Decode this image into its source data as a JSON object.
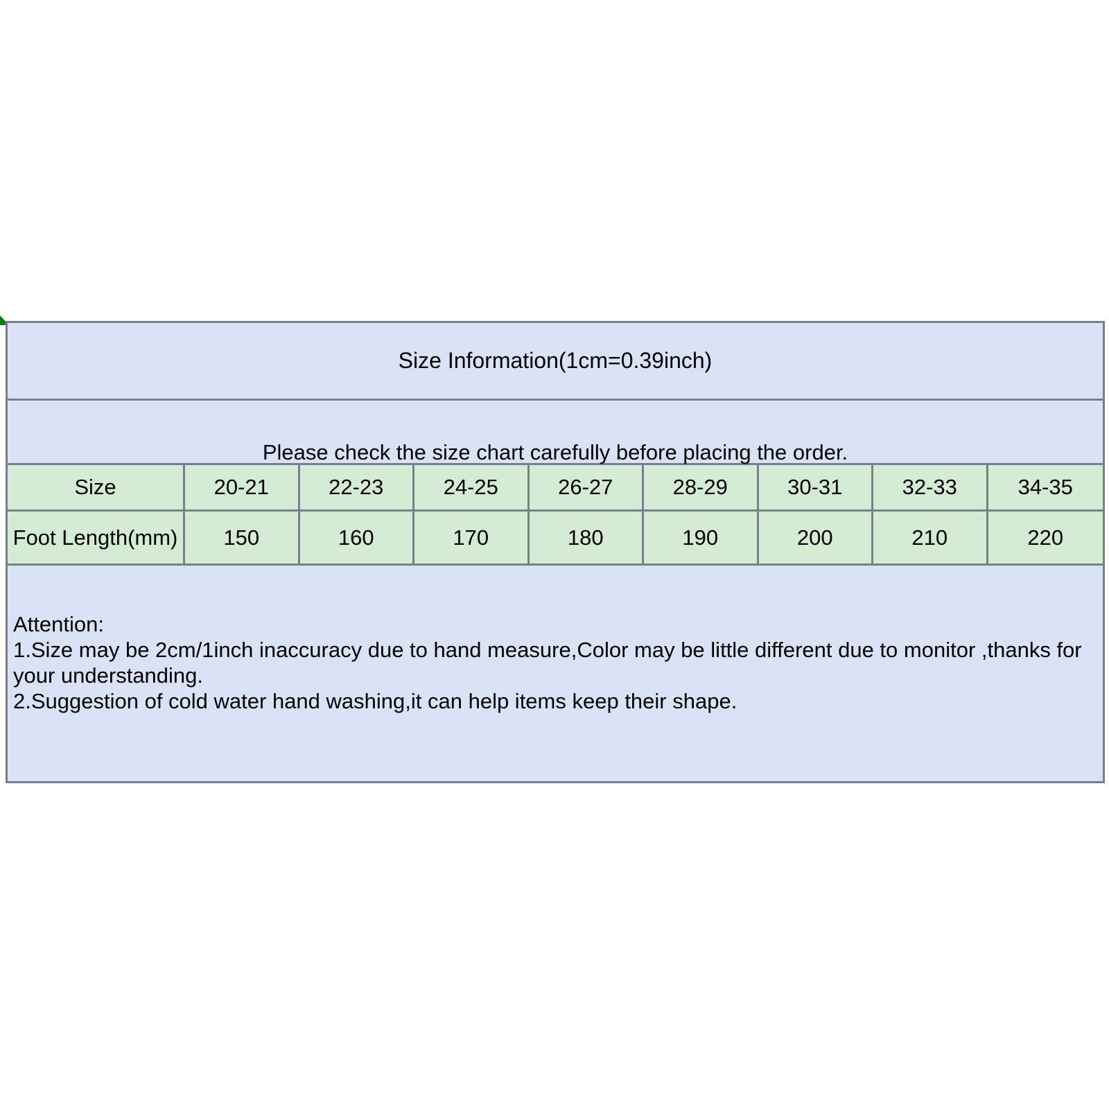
{
  "title": "Size Information(1cm=0.39inch)",
  "note": "Please check the size chart carefully before placing the order.",
  "size_chart": {
    "row_headers": [
      "Size",
      "Foot Length(mm)"
    ],
    "sizes": [
      "20-21",
      "22-23",
      "24-25",
      "26-27",
      "28-29",
      "30-31",
      "32-33",
      "34-35"
    ],
    "foot_lengths_mm": [
      "150",
      "160",
      "170",
      "180",
      "190",
      "200",
      "210",
      "220"
    ]
  },
  "attention": {
    "heading": "Attention:",
    "lines": [
      "1.Size may be 2cm/1inch inaccuracy due to hand measure,Color may be little different due to monitor ,thanks for your understanding.",
      "2.Suggestion of cold water hand washing,it can help items keep their shape."
    ]
  },
  "colors": {
    "blue_row_bg": "#d9e3f5",
    "green_row_bg": "#d5ecd4",
    "border": "#75808c",
    "corner_accent": "#0a7f0f",
    "text": "#000000",
    "page_bg": "#ffffff"
  },
  "chart_data": {
    "type": "table",
    "title": "Size Information(1cm=0.39inch)",
    "columns": [
      "Size",
      "20-21",
      "22-23",
      "24-25",
      "26-27",
      "28-29",
      "30-31",
      "32-33",
      "34-35"
    ],
    "rows": [
      [
        "Foot Length(mm)",
        "150",
        "160",
        "170",
        "180",
        "190",
        "200",
        "210",
        "220"
      ]
    ],
    "notes": [
      "Please check the size chart carefully before placing the order.",
      "Attention:",
      "1.Size may be 2cm/1inch inaccuracy due to hand measure,Color may be little different due to monitor ,thanks for your understanding.",
      "2.Suggestion of cold water hand washing,it can help items keep their shape."
    ]
  }
}
